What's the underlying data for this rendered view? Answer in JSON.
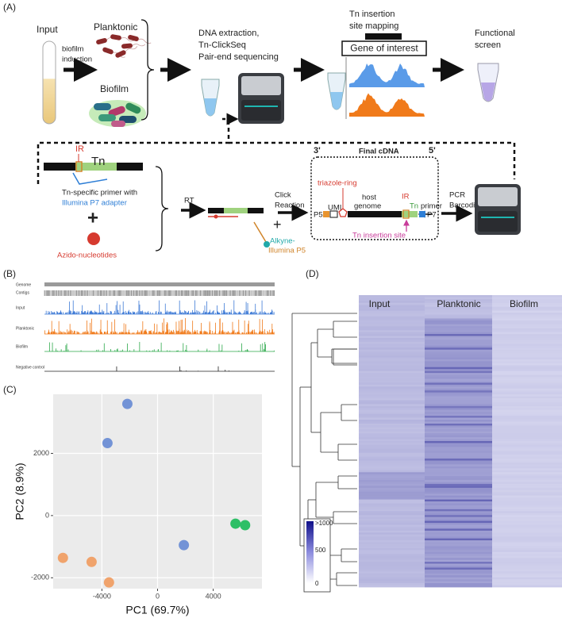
{
  "panel_a": {
    "label": "(A)",
    "input": "Input",
    "induction": [
      "biofilm",
      "induction"
    ],
    "planktonic": "Planktonic",
    "biofilm": "Biofilm",
    "sequencing": [
      "DNA extraction,",
      "Tn-ClickSeq",
      "Pair-end sequencing"
    ],
    "mapping": [
      "Tn insertion",
      "site mapping"
    ],
    "gene": "Gene of interest",
    "screen": [
      "Functional",
      "screen"
    ],
    "ir": "IR",
    "tn": "Tn",
    "primer": [
      "Tn-specific primer with",
      "Illumina P7 adapter"
    ],
    "plus": "+",
    "azido": "Azido-nucleotides",
    "rt": "RT",
    "click": [
      "Click",
      "Reaction"
    ],
    "alkyne": [
      "Alkyne-",
      "Illumina P5"
    ],
    "three_prime": "3'",
    "final": "Final cDNA",
    "five_prime": "5'",
    "triazole": "triazole-ring",
    "umi": "UMI",
    "host": [
      "host",
      "genome"
    ],
    "primer_label": "primer",
    "p5": "P5",
    "p7": "P7",
    "insertion": "Tn insertion site",
    "pcr": [
      "PCR",
      "Barcoding"
    ]
  },
  "panel_b": {
    "label": "(B)",
    "tracks": [
      "Genome",
      "Contigs",
      "Input",
      "Planktonic",
      "Biofilm",
      "Negative control"
    ]
  },
  "panel_c": {
    "label": "(C)"
  },
  "chart_data": {
    "type": "scatter",
    "xlabel": "PC1 (69.7%)",
    "ylabel": "PC2 (8.9%)",
    "xlim": [
      -7500,
      7500
    ],
    "ylim": [
      -2350,
      3900
    ],
    "xticks": [
      -4000,
      0,
      4000
    ],
    "yticks": [
      -2000,
      0,
      2000
    ],
    "grid": true,
    "series": [
      {
        "color": "#7393d6",
        "x": [
          -2170,
          -3600,
          1890
        ],
        "values": [
          3590,
          2330,
          -950
        ]
      },
      {
        "color": "#f0a36c",
        "x": [
          -6800,
          -4740,
          -3490
        ],
        "values": [
          -1360,
          -1490,
          -2150
        ]
      },
      {
        "color": "#2dbf66",
        "x": [
          5600,
          6290
        ],
        "values": [
          -260,
          -310
        ]
      }
    ]
  },
  "panel_d": {
    "label": "(D)",
    "columns": [
      "Input",
      "Planktonic",
      "Biofilm"
    ],
    "legend": [
      ">1000",
      "500",
      "0"
    ]
  }
}
